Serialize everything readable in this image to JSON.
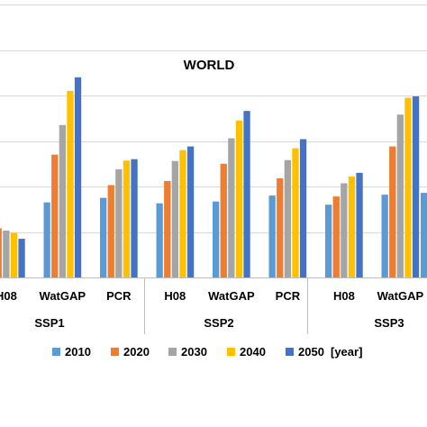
{
  "chart_data": {
    "type": "bar",
    "title": "WORLD",
    "series_names": [
      "2010",
      "2020",
      "2030",
      "2040",
      "2050"
    ],
    "legend_unit": "[year]",
    "legend_position": "bottom",
    "colors": [
      "#5B9BD5",
      "#ED7D31",
      "#A5A5A5",
      "#FFC000",
      "#4472C4"
    ],
    "grid": true,
    "ylim": [
      0,
      6
    ],
    "scenarios": [
      {
        "name": "SSP1",
        "groups": [
          {
            "model": "H08",
            "values": [
              1.2,
              1.08,
              1.03,
              0.98,
              0.85
            ]
          },
          {
            "model": "WatGAP",
            "values": [
              1.65,
              2.7,
              3.35,
              4.1,
              4.4
            ]
          },
          {
            "model": "PCR",
            "values": [
              1.75,
              2.03,
              2.38,
              2.57,
              2.6
            ]
          }
        ]
      },
      {
        "name": "SSP2",
        "groups": [
          {
            "model": "H08",
            "values": [
              1.63,
              2.12,
              2.56,
              2.8,
              2.88
            ]
          },
          {
            "model": "WatGAP",
            "values": [
              1.67,
              2.5,
              3.06,
              3.45,
              3.66
            ]
          },
          {
            "model": "PCR",
            "values": [
              1.8,
              2.18,
              2.58,
              2.84,
              3.04
            ]
          }
        ]
      },
      {
        "name": "SSP3",
        "groups": [
          {
            "model": "H08",
            "values": [
              1.6,
              1.78,
              2.07,
              2.22,
              2.3
            ]
          },
          {
            "model": "WatGAP",
            "values": [
              1.82,
              2.88,
              3.58,
              3.95,
              3.98
            ]
          }
        ]
      }
    ],
    "clipped_next_bar_value": 1.86
  }
}
